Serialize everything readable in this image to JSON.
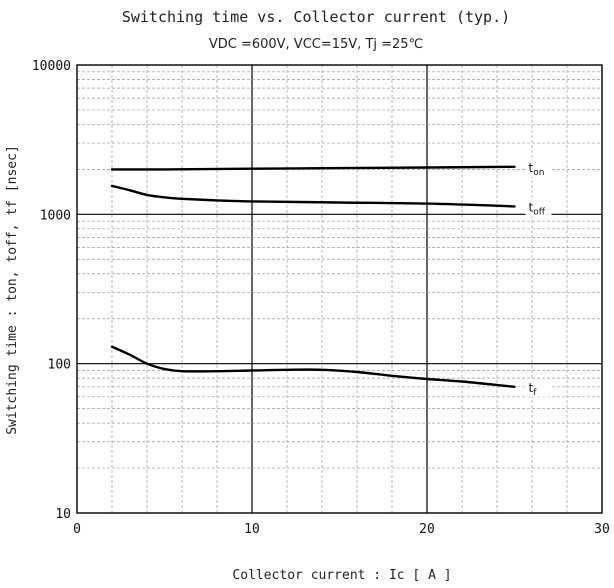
{
  "chart_data": {
    "type": "line",
    "title": "Switching time vs. Collector current (typ.)",
    "subtitle": "VDC =600V, VCC=15V, Tj =25℃",
    "xlabel": "Collector current : Ic [ A ]",
    "ylabel": "Switching time : ton, toff, tf [nsec]",
    "xlim": [
      0,
      30
    ],
    "ylim": [
      10,
      10000
    ],
    "yscale": "log",
    "grid": true,
    "x_ticks": [
      "0",
      "10",
      "20",
      "30"
    ],
    "y_ticks": [
      "10",
      "100",
      "1000",
      "10000"
    ],
    "series": [
      {
        "name": "ton",
        "x": [
          2,
          5,
          10,
          15,
          20,
          25
        ],
        "y": [
          2000,
          2000,
          2020,
          2040,
          2060,
          2080
        ]
      },
      {
        "name": "toff",
        "x": [
          2,
          3,
          4,
          5,
          6,
          8,
          10,
          15,
          20,
          25
        ],
        "y": [
          1550,
          1450,
          1350,
          1300,
          1270,
          1240,
          1220,
          1200,
          1180,
          1130
        ]
      },
      {
        "name": "tf",
        "x": [
          2,
          3,
          4,
          5,
          6,
          8,
          10,
          12,
          14,
          16,
          18,
          20,
          22,
          25
        ],
        "y": [
          130,
          115,
          100,
          92,
          89,
          89,
          90,
          91,
          91,
          88,
          83,
          79,
          76,
          70
        ]
      }
    ]
  }
}
